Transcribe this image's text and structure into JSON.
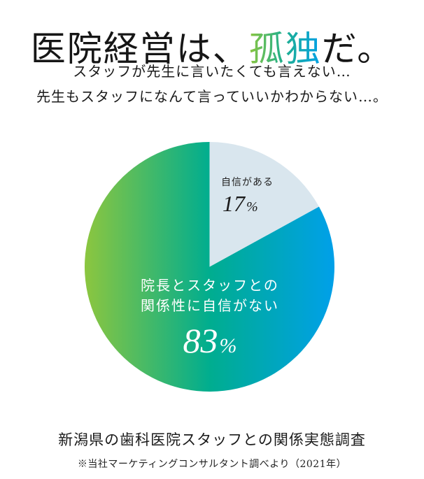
{
  "headline": {
    "prefix": "医院経営は、",
    "accent": "孤独",
    "suffix": "だ。",
    "accent_gradient": [
      "#8cc63f",
      "#22b08a",
      "#00a0e9"
    ]
  },
  "intro": {
    "line1": "スタッフが先生に言いたくても言えない…",
    "line2": "先生もスタッフになんて言っていいかわからない…。"
  },
  "chart_data": {
    "type": "pie",
    "title": "新潟県の歯科医院スタッフとの関係実態調査",
    "source": "※当社マーケティングコンサルタント調べより（2021年）",
    "categories": [
      "自信がある",
      "院長とスタッフとの関係性に自信がない"
    ],
    "values": [
      17,
      83
    ],
    "unit": "%",
    "start_angle_deg": 0,
    "direction": "clockwise",
    "colors": {
      "confident": "#d9e6ee",
      "not_confident_gradient": [
        "#8cc63f",
        "#00ad8f",
        "#00a0e9"
      ]
    }
  },
  "slices": {
    "small": {
      "label": "自信がある",
      "value": "17",
      "unit": "%"
    },
    "large": {
      "label_line1": "院長とスタッフとの",
      "label_line2": "関係性に自信がない",
      "value": "83",
      "unit": "%"
    }
  },
  "caption": {
    "title": "新潟県の歯科医院スタッフとの関係実態調査",
    "source": "※当社マーケティングコンサルタント調べより（2021年）"
  }
}
